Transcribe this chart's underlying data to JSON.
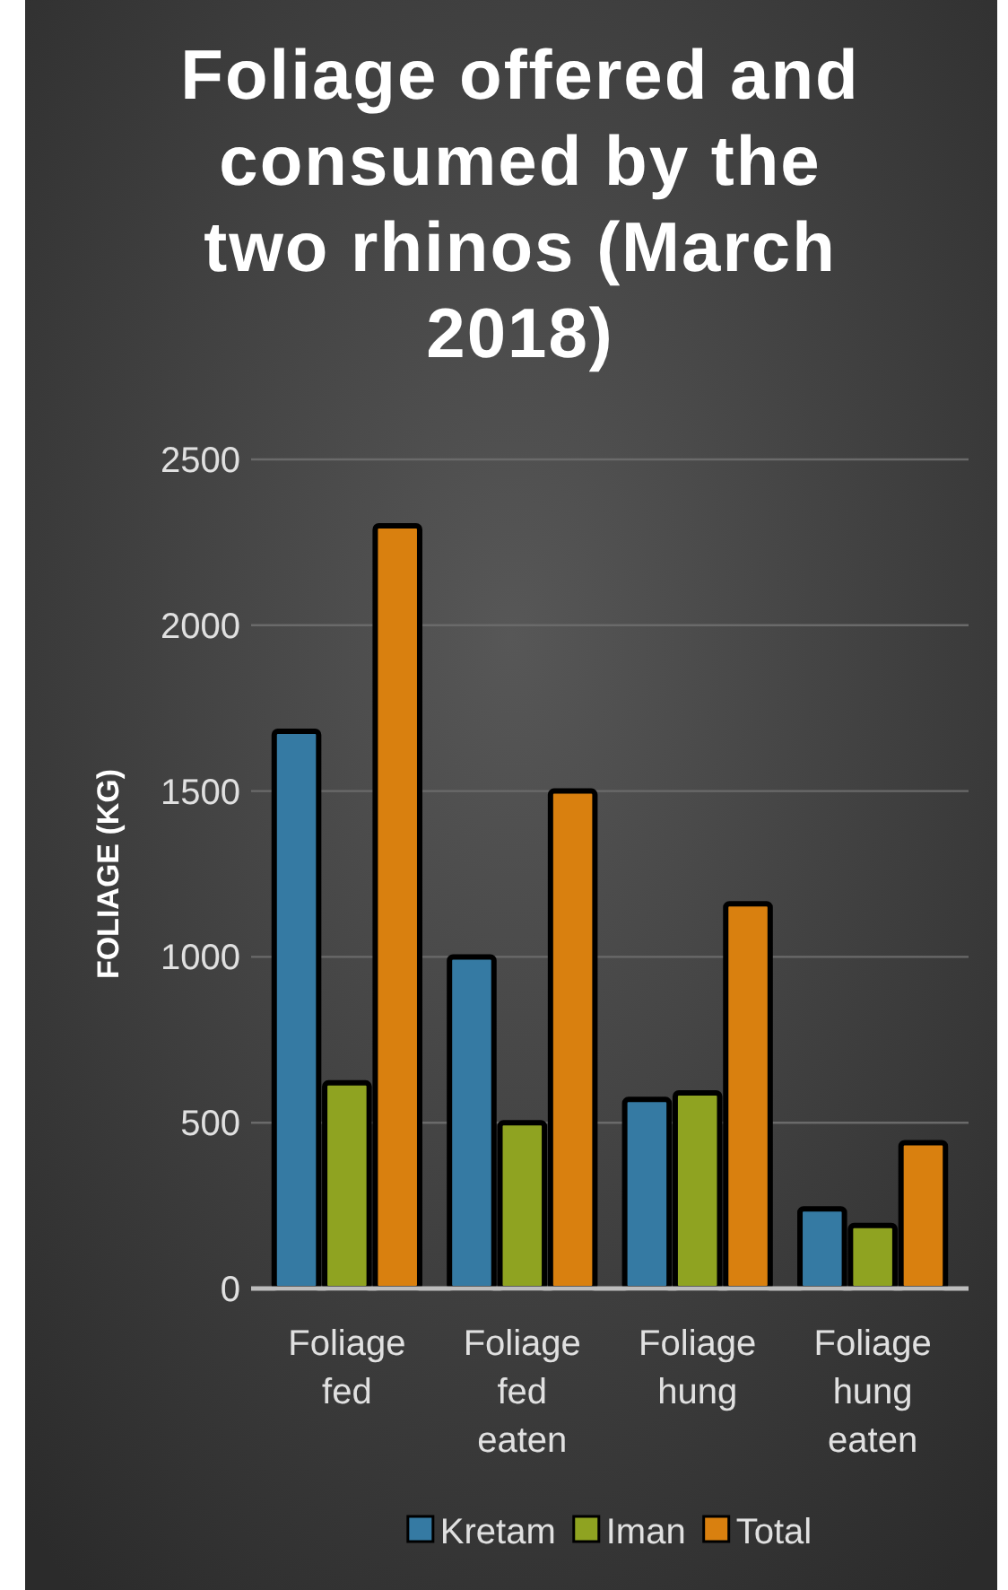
{
  "chart_data": {
    "type": "bar",
    "title": "Foliage offered and consumed by the two rhinos (March 2018)",
    "ylabel": "FOLIAGE (KG)",
    "categories": [
      "Foliage fed",
      "Foliage fed eaten",
      "Foliage hung",
      "Foliage hung eaten"
    ],
    "series": [
      {
        "name": "Kretam",
        "color": "#357aa3",
        "values": [
          1680,
          1000,
          570,
          240
        ]
      },
      {
        "name": "Iman",
        "color": "#8fa321",
        "values": [
          620,
          500,
          590,
          190
        ]
      },
      {
        "name": "Total",
        "color": "#d9800f",
        "values": [
          2300,
          1500,
          1160,
          440
        ]
      }
    ],
    "ylim": [
      0,
      2500
    ],
    "yticks": [
      0,
      500,
      1000,
      1500,
      2000,
      2500
    ],
    "grid": "y",
    "legend": "bottom"
  }
}
